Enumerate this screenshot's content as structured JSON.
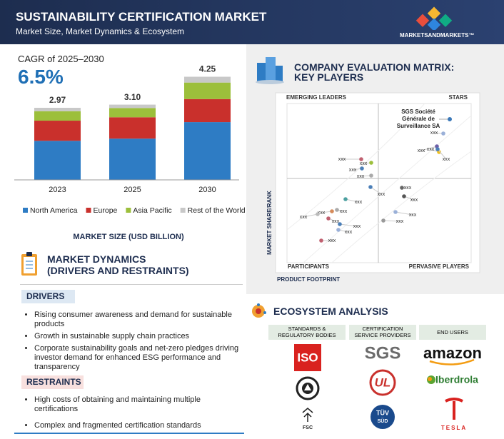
{
  "header": {
    "title": "SUSTAINABILITY CERTIFICATION MARKET",
    "subtitle": "Market Size, Market Dynamics & Ecosystem",
    "brand": "MARKETSANDMARKETS™"
  },
  "chart_data": {
    "type": "bar",
    "stacked": true,
    "cagr_label": "CAGR of 2025–2030",
    "cagr": "6.5%",
    "categories": [
      "2023",
      "2025",
      "2030"
    ],
    "series": [
      {
        "name": "North America",
        "color": "#2e7cc4",
        "values": [
          1.61,
          1.7,
          2.38
        ]
      },
      {
        "name": "Europe",
        "color": "#c9302c",
        "values": [
          0.83,
          0.88,
          0.95
        ]
      },
      {
        "name": "Asia Pacific",
        "color": "#9cbf3b",
        "values": [
          0.39,
          0.38,
          0.68
        ]
      },
      {
        "name": "Rest of the World",
        "color": "#c8c8c8",
        "values": [
          0.14,
          0.14,
          0.24
        ]
      }
    ],
    "totals": [
      2.97,
      3.1,
      4.25
    ],
    "total_labels": [
      "2.97",
      "3.10",
      "4.25"
    ],
    "xlabel": "MARKET SIZE (USD BILLION)"
  },
  "dynamics": {
    "title": "MARKET DYNAMICS",
    "subtitle": "(DRIVERS AND RESTRAINTS)",
    "drivers": {
      "heading": "DRIVERS",
      "items": [
        "Rising consumer awareness and demand for sustainable products",
        "Growth in sustainable supply chain practices",
        "Corporate sustainability goals and net-zero pledges driving investor demand for enhanced ESG performance and transparency"
      ]
    },
    "restraints": {
      "heading": "RESTRAINTS",
      "items": [
        "High costs of obtaining and maintaining multiple certifications",
        "Complex and fragmented certification standards"
      ]
    }
  },
  "matrix": {
    "title_lines": [
      "COMPANY EVALUATION MATRIX:",
      "KEY PLAYERS"
    ],
    "quadrants": {
      "emerging": "EMERGING LEADERS",
      "stars": "STARS",
      "participants": "PARTICIPANTS",
      "pervasive": "PERVASIVE PLAYERS"
    },
    "y_label": "MARKET SHARE/RANK",
    "x_label": "PRODUCT FOOTPRINT",
    "highlight_lines": [
      "SGS Société",
      "Générale de",
      "Surveillance SA"
    ],
    "point_labels": [
      "xxx",
      "xxx",
      "xxx",
      "xxx",
      "xxx",
      "xxx",
      "xxx",
      "xxx",
      "xxx",
      "xxx",
      "xxx",
      "xxx",
      "xxx",
      "xxx",
      "xxx",
      "xxx",
      "xxx",
      "xxx",
      "xxx",
      "xxx",
      "xxx"
    ]
  },
  "ecosystem": {
    "title": "ECOSYSTEM ANALYSIS",
    "columns": [
      {
        "heading_lines": [
          "STANDARDS &",
          "REGULATORY BODIES"
        ],
        "logos": [
          "ISO",
          "FSC"
        ]
      },
      {
        "heading_lines": [
          "CERTIFICATION",
          "SERVICE PROVIDERS"
        ],
        "logos": [
          "SGS",
          "UL",
          "TÜV",
          "SÜD"
        ]
      },
      {
        "heading_lines": [
          "END USERS"
        ],
        "logos": [
          "amazon",
          "Iberdrola",
          "TESLA"
        ]
      }
    ]
  }
}
